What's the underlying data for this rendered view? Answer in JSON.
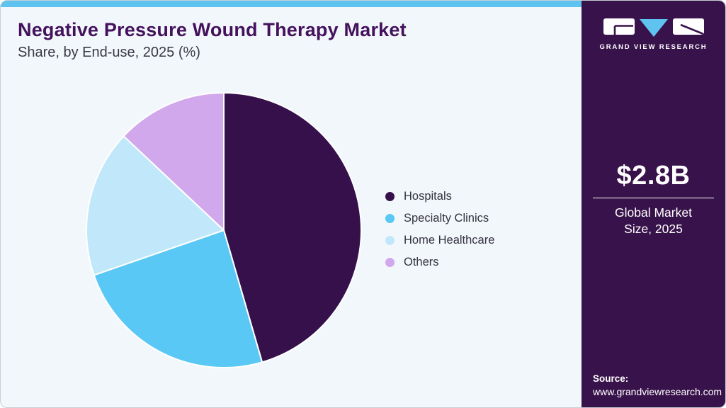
{
  "header": {
    "title": "Negative Pressure Wound Therapy Market",
    "subtitle": "Share, by End-use, 2025 (%)"
  },
  "chart_data": {
    "type": "pie",
    "title": "Negative Pressure Wound Therapy Market Share, by End-use, 2025 (%)",
    "unit": "%",
    "categories": [
      "Hospitals",
      "Specialty Clinics",
      "Home Healthcare",
      "Others"
    ],
    "values": [
      45.5,
      24.2,
      17.3,
      13.0
    ],
    "colors": [
      "#36104B",
      "#5AC8F5",
      "#C0E8FA",
      "#D2A8EC"
    ],
    "start_angle_deg": 0,
    "direction": "clockwise",
    "legend_position": "right",
    "data_labels": false
  },
  "sidebar": {
    "brand": {
      "name": "GRAND VIEW RESEARCH",
      "logo_icon": "gvr-logo"
    },
    "market_size": {
      "value": "$2.8B",
      "label": "Global Market Size, 2025"
    },
    "source": {
      "label": "Source:",
      "url": "www.grandviewresearch.com"
    }
  },
  "theme": {
    "background": "#F2F7FB",
    "accent_strip": "#5FC3EF",
    "sidebar_bg": "#38124A",
    "title_color": "#44125C",
    "text_color": "#34323F",
    "white": "#FFFFFF"
  }
}
